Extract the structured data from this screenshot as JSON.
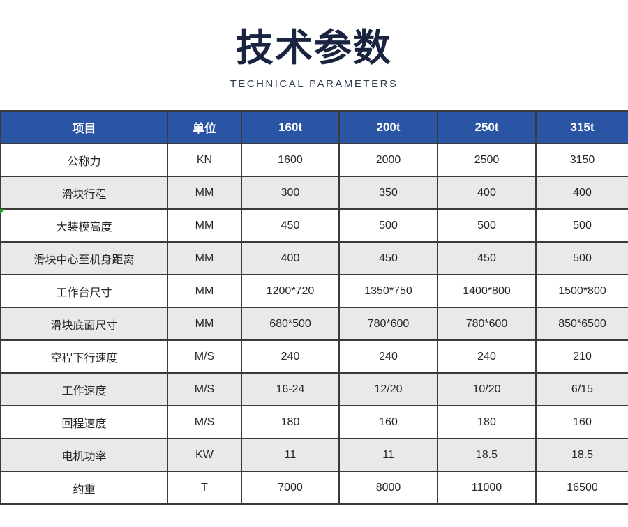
{
  "header": {
    "title": "技术参数",
    "subtitle": "TECHNICAL PARAMETERS"
  },
  "table": {
    "columns": [
      "项目",
      "单位",
      "160t",
      "200t",
      "250t",
      "315t"
    ],
    "rows": [
      [
        "公称力",
        "KN",
        "1600",
        "2000",
        "2500",
        "3150"
      ],
      [
        "滑块行程",
        "MM",
        "300",
        "350",
        "400",
        "400"
      ],
      [
        "大装模高度",
        "MM",
        "450",
        "500",
        "500",
        "500"
      ],
      [
        "滑块中心至机身距离",
        "MM",
        "400",
        "450",
        "450",
        "500"
      ],
      [
        "工作台尺寸",
        "MM",
        "1200*720",
        "1350*750",
        "1400*800",
        "1500*800"
      ],
      [
        "滑块底面尺寸",
        "MM",
        "680*500",
        "780*600",
        "780*600",
        "850*6500"
      ],
      [
        "空程下行速度",
        "M/S",
        "240",
        "240",
        "240",
        "210"
      ],
      [
        "工作速度",
        "M/S",
        "16-24",
        "12/20",
        "10/20",
        "6/15"
      ],
      [
        "回程速度",
        "M/S",
        "180",
        "160",
        "180",
        "160"
      ],
      [
        "电机功率",
        "KW",
        "11",
        "11",
        "18.5",
        "18.5"
      ],
      [
        "约重",
        "T",
        "7000",
        "8000",
        "11000",
        "16500"
      ]
    ]
  },
  "theme": {
    "header_bg": "#2A55A5",
    "header_text": "#ffffff",
    "stripe_bg": "#E9E9E9",
    "border_color": "#3A3A3A",
    "title_color": "#1A2440",
    "subtitle_color": "#2E3B52",
    "cell_text": "#262626",
    "marker_green": "#1E9E1E",
    "page_bg": "#ffffff"
  }
}
